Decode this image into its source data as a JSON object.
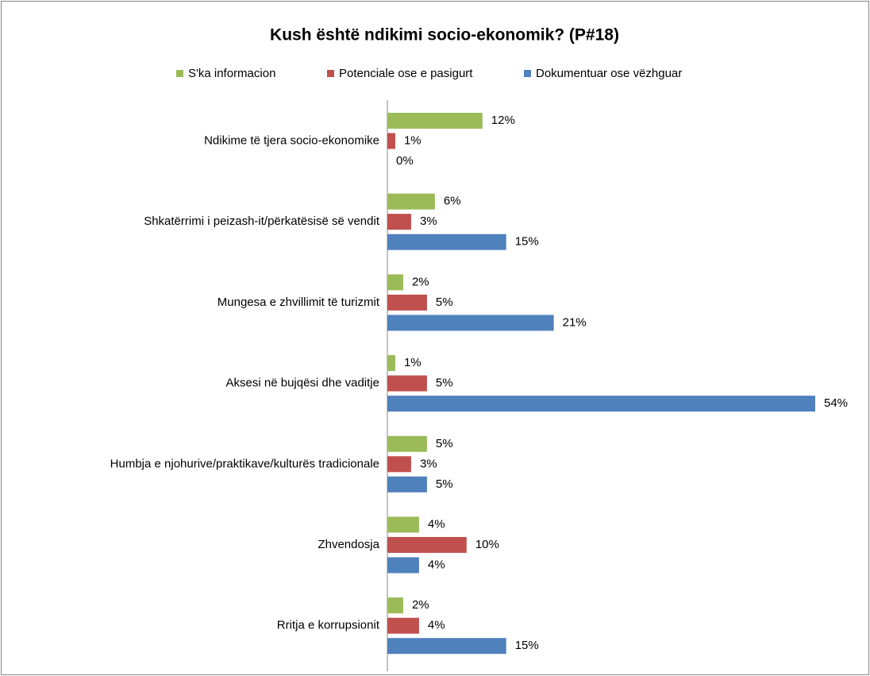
{
  "chart_data": {
    "type": "hbar",
    "title": "Kush është ndikimi socio-ekonomik? (P#18)",
    "categories": [
      "Ndikime të tjera socio-ekonomike",
      "Shkatërrimi i peizash-it/përkatësisë së vendit",
      "Mungesa e zhvillimit të turizmit",
      "Aksesi në bujqësi dhe vaditje",
      "Humbja e njohurive/praktikave/kulturës tradicionale",
      "Zhvendosja",
      "Rritja e korrupsionit"
    ],
    "series": [
      {
        "name": "S'ka informacion",
        "color": "#9bbb59",
        "values": [
          12,
          6,
          2,
          1,
          5,
          4,
          2
        ],
        "value_labels": [
          "12%",
          "6%",
          "2%",
          "1%",
          "5%",
          "4%",
          "2%"
        ]
      },
      {
        "name": "Potenciale ose e pasigurt",
        "color": "#c0504d",
        "values": [
          1,
          3,
          5,
          5,
          3,
          10,
          4
        ],
        "value_labels": [
          "1%",
          "3%",
          "5%",
          "5%",
          "3%",
          "10%",
          "4%"
        ]
      },
      {
        "name": "Dokumentuar ose vëzhguar",
        "color": "#4f81bd",
        "values": [
          0,
          15,
          21,
          54,
          5,
          4,
          15
        ],
        "value_labels": [
          "0%",
          "15%",
          "21%",
          "54%",
          "5%",
          "4%",
          "15%"
        ]
      }
    ],
    "legend": "top"
  }
}
